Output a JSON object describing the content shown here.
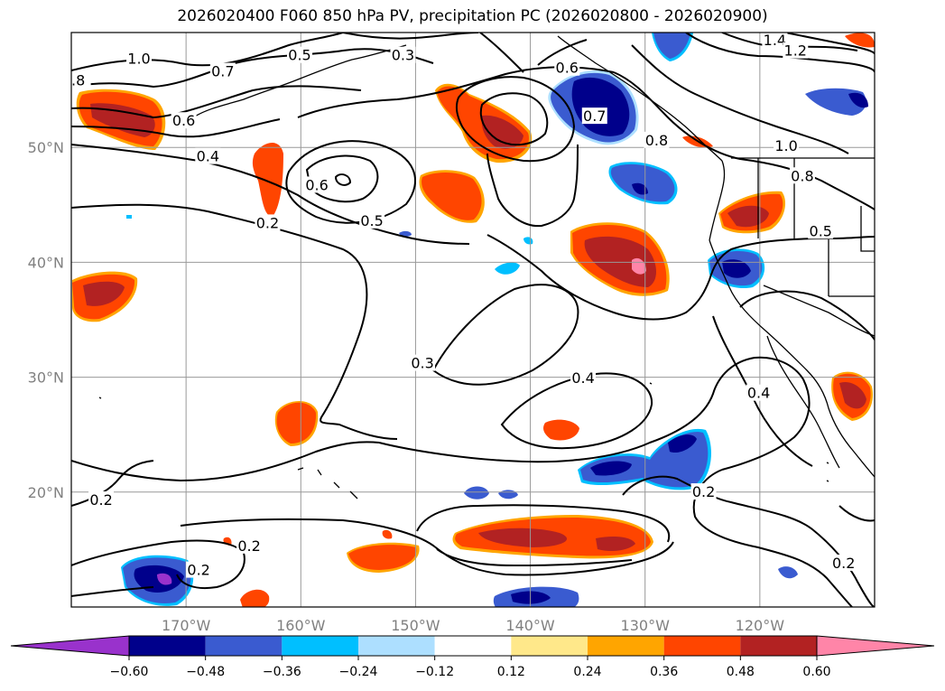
{
  "title": "2026020400 F060 850 hPa PV, precipitation PC (2026020800 - 2026020900)",
  "map": {
    "projection": "plate-carree",
    "lon_range": [
      -180,
      -110
    ],
    "lat_range": [
      10,
      60
    ],
    "lat_ticks": [
      {
        "value": 20,
        "label": "20°N"
      },
      {
        "value": 30,
        "label": "30°N"
      },
      {
        "value": 40,
        "label": "40°N"
      },
      {
        "value": 50,
        "label": "50°N"
      }
    ],
    "lon_ticks": [
      {
        "value": -170,
        "label": "170°W"
      },
      {
        "value": -160,
        "label": "160°W"
      },
      {
        "value": -150,
        "label": "150°W"
      },
      {
        "value": -140,
        "label": "140°W"
      },
      {
        "value": -130,
        "label": "130°W"
      },
      {
        "value": -120,
        "label": "120°W"
      }
    ],
    "gridlines": true
  },
  "contour_labels": [
    {
      "text": "1.0",
      "lon": -174.1,
      "lat": 57.6
    },
    {
      "text": "0.7",
      "lon": -166.8,
      "lat": 56.5
    },
    {
      "text": "0.5",
      "lon": -160.1,
      "lat": 57.9
    },
    {
      "text": "0.3",
      "lon": -151.1,
      "lat": 57.9
    },
    {
      "text": "0.6",
      "lon": -136.8,
      "lat": 56.8
    },
    {
      "text": "1.4",
      "lon": -118.7,
      "lat": 59.2
    },
    {
      "text": "1.2",
      "lon": -116.9,
      "lat": 58.3
    },
    {
      "text": ".8",
      "lon": -179.4,
      "lat": 55.7
    },
    {
      "text": "0.6",
      "lon": -170.2,
      "lat": 52.2
    },
    {
      "text": "0.4",
      "lon": -168.1,
      "lat": 49.1
    },
    {
      "text": "0.6",
      "lon": -158.6,
      "lat": 46.6
    },
    {
      "text": "0.5",
      "lon": -153.8,
      "lat": 43.5
    },
    {
      "text": "0.2",
      "lon": -162.9,
      "lat": 43.3
    },
    {
      "text": "0.7",
      "lon": -134.4,
      "lat": 52.6
    },
    {
      "text": "0.8",
      "lon": -129.0,
      "lat": 50.5
    },
    {
      "text": "1.0",
      "lon": -117.7,
      "lat": 50.0
    },
    {
      "text": "0.8",
      "lon": -116.3,
      "lat": 47.4
    },
    {
      "text": "0.5",
      "lon": -114.7,
      "lat": 42.6
    },
    {
      "text": "0.3",
      "lon": -149.4,
      "lat": 31.1
    },
    {
      "text": "0.4",
      "lon": -135.4,
      "lat": 29.8
    },
    {
      "text": "0.4",
      "lon": -120.1,
      "lat": 28.5
    },
    {
      "text": "0.2",
      "lon": -177.4,
      "lat": 19.2
    },
    {
      "text": "0.2",
      "lon": -164.5,
      "lat": 15.2
    },
    {
      "text": "0.2",
      "lon": -168.9,
      "lat": 13.1
    },
    {
      "text": "0.2",
      "lon": -124.9,
      "lat": 19.9
    },
    {
      "text": "0.2",
      "lon": -112.7,
      "lat": 13.7
    }
  ],
  "colorbar": {
    "tick_labels": [
      "−0.60",
      "−0.48",
      "−0.36",
      "−0.24",
      "−0.12",
      "0.12",
      "0.24",
      "0.36",
      "0.48",
      "0.60"
    ],
    "colors": [
      "#9932CC",
      "#00008B",
      "#3A5BD0",
      "#00BFFF",
      "#ADDFFF",
      "#FFFFFF",
      "#FFE88A",
      "#FFA500",
      "#FF4500",
      "#B22222",
      "#FF85A8"
    ]
  }
}
